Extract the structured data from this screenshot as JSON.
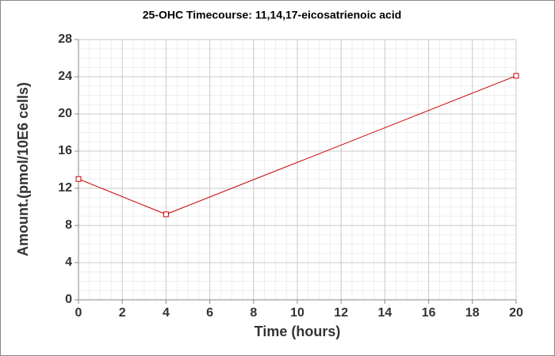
{
  "chart_data": {
    "type": "line",
    "title": "25-OHC Timecourse: 11,14,17-eicosatrienoic acid",
    "x_label": "Time (hours)",
    "y_label": "Amount.(pmol/10E6 cells)",
    "x": [
      0,
      4,
      20
    ],
    "series": [
      {
        "name": "11,14,17-eicosatrienoic acid",
        "color": "#cc0000",
        "values": [
          13.0,
          9.2,
          24.1
        ]
      }
    ],
    "xlim": [
      0,
      20
    ],
    "xticks": [
      0,
      2,
      4,
      6,
      8,
      10,
      12,
      14,
      16,
      18,
      20
    ],
    "ylim": [
      0,
      28
    ],
    "yticks": [
      0,
      4,
      8,
      12,
      16,
      20,
      24,
      28
    ],
    "grid": true
  }
}
